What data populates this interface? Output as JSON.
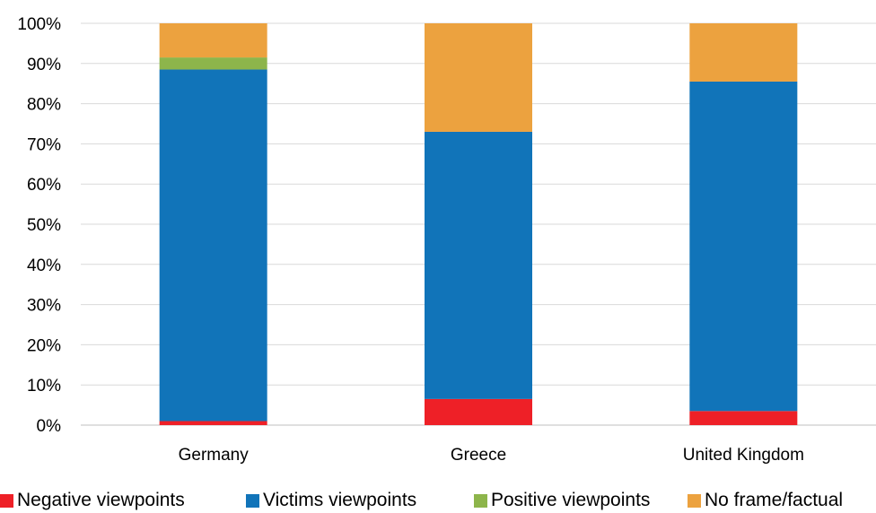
{
  "chart_data": {
    "type": "bar",
    "stacked": true,
    "percent_scale": true,
    "categories": [
      "Germany",
      "Greece",
      "United Kingdom"
    ],
    "series": [
      {
        "name": "Negative viewpoints",
        "color": "#ee2027",
        "values": [
          1,
          6.5,
          3.5
        ]
      },
      {
        "name": "Victims viewpoints",
        "color": "#1174b9",
        "values": [
          87.5,
          66.5,
          82
        ]
      },
      {
        "name": "Positive viewpoints",
        "color": "#8db54b",
        "values": [
          3,
          0,
          0
        ]
      },
      {
        "name": "No frame/factual",
        "color": "#eca23f",
        "values": [
          8.5,
          27,
          14.5
        ]
      }
    ],
    "ylim": [
      0,
      100
    ],
    "yticks": [
      "0%",
      "10%",
      "20%",
      "30%",
      "40%",
      "50%",
      "60%",
      "70%",
      "80%",
      "90%",
      "100%"
    ],
    "grid": true,
    "legend_position": "bottom"
  }
}
